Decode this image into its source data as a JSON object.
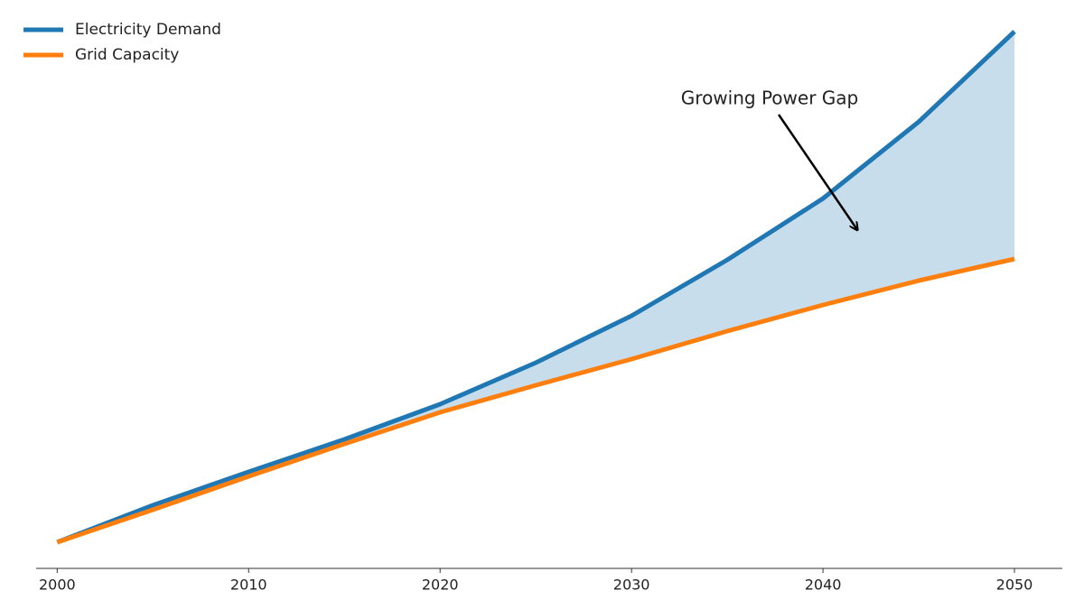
{
  "chart_data": {
    "type": "line",
    "x": [
      2000,
      2005,
      2010,
      2015,
      2020,
      2025,
      2030,
      2035,
      2040,
      2045,
      2050
    ],
    "series": [
      {
        "name": "Electricity Demand",
        "color": "#1f77b4",
        "values": [
          2.9,
          7.0,
          10.7,
          14.3,
          18.2,
          22.8,
          28.0,
          34.2,
          41.0,
          49.5,
          59.5
        ]
      },
      {
        "name": "Grid Capacity",
        "color": "#ff7f0e",
        "values": [
          2.9,
          6.5,
          10.2,
          13.8,
          17.3,
          20.3,
          23.2,
          26.3,
          29.2,
          31.9,
          34.3
        ]
      }
    ],
    "fill_between": {
      "color": "#1f77b4",
      "opacity": 0.25
    },
    "annotation": {
      "text": "Growing Power Gap",
      "x": 2041.8,
      "y": 37.5
    },
    "xlim": [
      1998.9,
      2052.5
    ],
    "xticks": [
      2000,
      2010,
      2020,
      2030,
      2040,
      2050
    ],
    "ylim": [
      0,
      61
    ],
    "legend": "upper left"
  }
}
